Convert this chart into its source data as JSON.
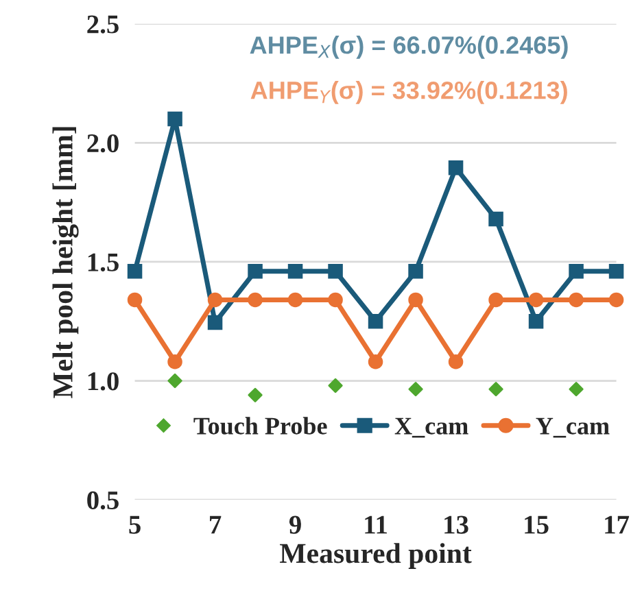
{
  "chart_data": {
    "type": "line",
    "xlabel": "Measured point",
    "ylabel": "Melt pool height [mm]",
    "x": [
      5,
      6,
      7,
      8,
      9,
      10,
      11,
      12,
      13,
      14,
      15,
      16,
      17
    ],
    "series": [
      {
        "name": "Touch Probe",
        "type": "scatter",
        "marker": "diamond",
        "color": "#4ea72e",
        "x": [
          6,
          8,
          10,
          12,
          14,
          16
        ],
        "values": [
          1.0,
          0.94,
          0.98,
          0.965,
          0.965,
          0.965
        ]
      },
      {
        "name": "X_cam",
        "marker": "square",
        "color": "#1a5a7a",
        "values": [
          1.46,
          2.1,
          1.245,
          1.46,
          1.46,
          1.46,
          1.25,
          1.46,
          1.895,
          1.68,
          1.25,
          1.46,
          1.46
        ]
      },
      {
        "name": "Y_cam",
        "marker": "circle",
        "color": "#e97132",
        "values": [
          1.34,
          1.08,
          1.34,
          1.34,
          1.34,
          1.34,
          1.08,
          1.34,
          1.08,
          1.34,
          1.34,
          1.34,
          1.34
        ]
      }
    ],
    "annotations": [
      "AHPE$_{X}$(σ) = 66.07%(0.2465)",
      "AHPE$_{Y}$(σ) = 33.92%(0.1213)"
    ],
    "xlim": [
      5,
      17
    ],
    "xticks": [
      5,
      7,
      9,
      11,
      13,
      15,
      17
    ],
    "ylim": [
      0.5,
      2.5
    ],
    "yticks": [
      0.5,
      {
        "value": 1,
        "label": "1.0"
      },
      1.5,
      {
        "value": 2,
        "label": "2.0"
      },
      2.5
    ],
    "grid": "y",
    "legend": "bottom",
    "line_style": "solid"
  }
}
